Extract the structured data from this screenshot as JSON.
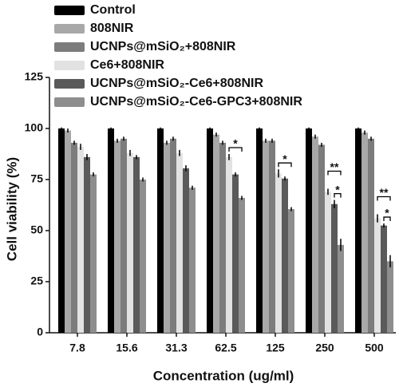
{
  "chart_data": {
    "type": "bar",
    "x_label": "Concentration (ug/ml)",
    "y_label": "Cell viability (%)",
    "categories": [
      "7.8",
      "15.6",
      "31.3",
      "62.5",
      "125",
      "250",
      "500"
    ],
    "series": [
      {
        "name": "Control",
        "color": "#000000",
        "values": [
          100,
          100,
          100,
          100,
          100,
          100,
          100
        ],
        "errors": [
          0.5,
          0.5,
          0.5,
          0.5,
          0.5,
          0.5,
          0.5
        ]
      },
      {
        "name": "808NIR",
        "color": "#a8a8a8",
        "values": [
          99,
          94,
          93,
          97,
          94,
          96,
          98
        ],
        "errors": [
          1,
          1,
          1,
          1,
          1,
          1,
          1
        ]
      },
      {
        "name": "UCNPs@mSiO₂+808NIR",
        "color": "#7c7c7c",
        "values": [
          93,
          95,
          95,
          93,
          94,
          92,
          95
        ],
        "errors": [
          1,
          1,
          1,
          1,
          1,
          1,
          1
        ]
      },
      {
        "name": "Ce6+808NIR",
        "color": "#e2e2e2",
        "values": [
          91,
          88,
          88,
          86,
          78,
          69,
          56
        ],
        "errors": [
          1.5,
          1.5,
          1.5,
          1.5,
          2,
          1.5,
          2
        ]
      },
      {
        "name": "UCNPs@mSiO₂-Ce6+808NIR",
        "color": "#5a5a5a",
        "values": [
          86,
          86,
          80.5,
          77.5,
          75.5,
          63,
          52.5
        ],
        "errors": [
          1.5,
          1,
          1.5,
          1,
          1,
          2,
          1
        ]
      },
      {
        "name": "UCNPs@mSiO₂-Ce6-GPC3+808NIR",
        "color": "#8e8e8e",
        "values": [
          77.5,
          75,
          71,
          66,
          60.5,
          43,
          35
        ],
        "errors": [
          1,
          1,
          1,
          1,
          1,
          3,
          3
        ]
      }
    ],
    "ylim": [
      0,
      125
    ],
    "yticks": [
      0,
      25,
      50,
      75,
      100,
      125
    ],
    "annotations": [
      {
        "category": "62.5",
        "from": "Ce6+808NIR",
        "to": "UCNPs@mSiO₂-Ce6-GPC3+808NIR",
        "label": "*"
      },
      {
        "category": "125",
        "from": "Ce6+808NIR",
        "to": "UCNPs@mSiO₂-Ce6-GPC3+808NIR",
        "label": "*"
      },
      {
        "category": "250",
        "from": "Ce6+808NIR",
        "to": "UCNPs@mSiO₂-Ce6-GPC3+808NIR",
        "label": "**"
      },
      {
        "category": "250",
        "from": "UCNPs@mSiO₂-Ce6+808NIR",
        "to": "UCNPs@mSiO₂-Ce6-GPC3+808NIR",
        "label": "*"
      },
      {
        "category": "500",
        "from": "Ce6+808NIR",
        "to": "UCNPs@mSiO₂-Ce6-GPC3+808NIR",
        "label": "**"
      },
      {
        "category": "500",
        "from": "UCNPs@mSiO₂-Ce6+808NIR",
        "to": "UCNPs@mSiO₂-Ce6-GPC3+808NIR",
        "label": "*"
      }
    ]
  }
}
